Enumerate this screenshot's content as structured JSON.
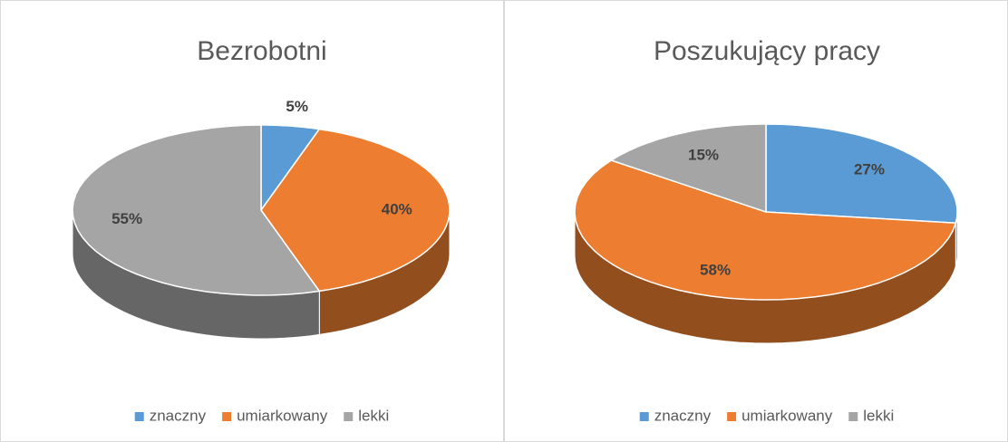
{
  "chart_data": [
    {
      "type": "pie",
      "title": "Bezrobotni",
      "categories": [
        "znaczny",
        "umiarkowany",
        "lekki"
      ],
      "values": [
        5,
        40,
        55
      ],
      "value_labels": [
        "5%",
        "40%",
        "55%"
      ],
      "colors": [
        "#5b9bd5",
        "#ed7d31",
        "#a5a5a5"
      ],
      "legend": "bottom"
    },
    {
      "type": "pie",
      "title": "Poszukujący pracy",
      "categories": [
        "znaczny",
        "umiarkowany",
        "lekki"
      ],
      "values": [
        27,
        58,
        15
      ],
      "value_labels": [
        "27%",
        "58%",
        "15%"
      ],
      "colors": [
        "#5b9bd5",
        "#ed7d31",
        "#a5a5a5"
      ],
      "legend": "bottom"
    }
  ]
}
